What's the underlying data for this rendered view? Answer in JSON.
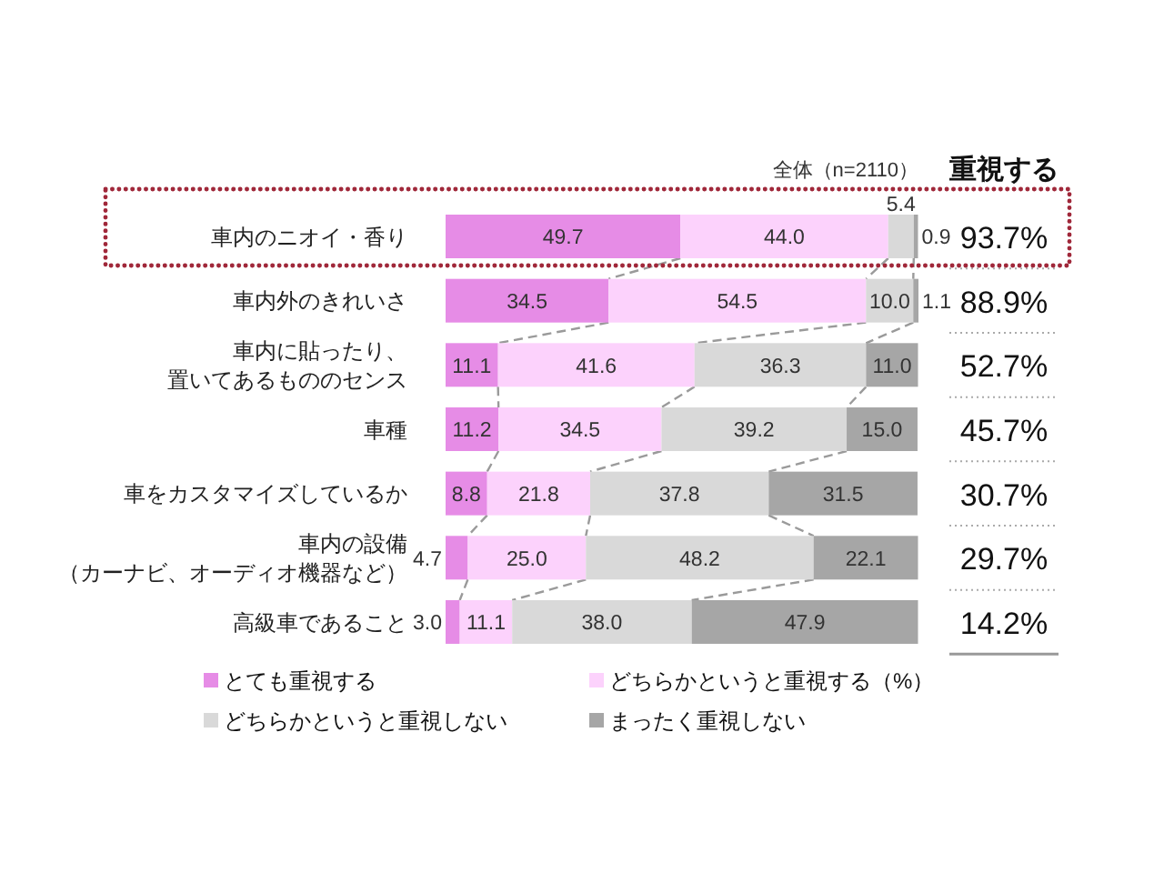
{
  "chart_data": {
    "type": "bar",
    "orientation": "horizontal",
    "stacked": true,
    "categories": [
      "車内のニオイ・香り",
      "車内外のきれいさ",
      "車内に貼ったり、置いてあるもののセンス",
      "車種",
      "車をカスタマイズしているか",
      "車内の設備（カーナビ、オーディオ機器など）",
      "高級車であること"
    ],
    "series": [
      {
        "name": "とても重視する",
        "color": "#e68ce6",
        "values": [
          49.7,
          34.5,
          11.1,
          11.2,
          8.8,
          4.7,
          3.0
        ],
        "value_labels": [
          "49.7",
          "34.5",
          "11.1",
          "11.2",
          "8.8",
          "4.7",
          "3.0"
        ]
      },
      {
        "name": "どちらかというと重視する（%）",
        "color": "#fcd2fc",
        "values": [
          44.0,
          54.5,
          41.6,
          34.5,
          21.8,
          25.0,
          11.1
        ],
        "value_labels": [
          "44.0",
          "54.5",
          "41.6",
          "34.5",
          "21.8",
          "25.0",
          "11.1"
        ]
      },
      {
        "name": "どちらかというと重視しない",
        "color": "#d9d9d9",
        "values": [
          5.4,
          10.0,
          36.3,
          39.2,
          37.8,
          48.2,
          38.0
        ],
        "value_labels": [
          "5.4",
          "10.0",
          "36.3",
          "39.2",
          "37.8",
          "48.2",
          "38.0"
        ]
      },
      {
        "name": "まったく重視しない",
        "color": "#a6a6a6",
        "values": [
          0.9,
          1.1,
          11.0,
          15.0,
          31.5,
          22.1,
          47.9
        ],
        "value_labels": [
          "0.9",
          "1.1",
          "11.0",
          "15.0",
          "31.5",
          "22.1",
          "47.9"
        ]
      }
    ],
    "annotations": [
      "全体（n=2110）",
      "重視する",
      "93.7%",
      "88.9%",
      "52.7%",
      "45.7%",
      "30.7%",
      "29.7%",
      "14.2%"
    ],
    "legend": "bottom"
  }
}
